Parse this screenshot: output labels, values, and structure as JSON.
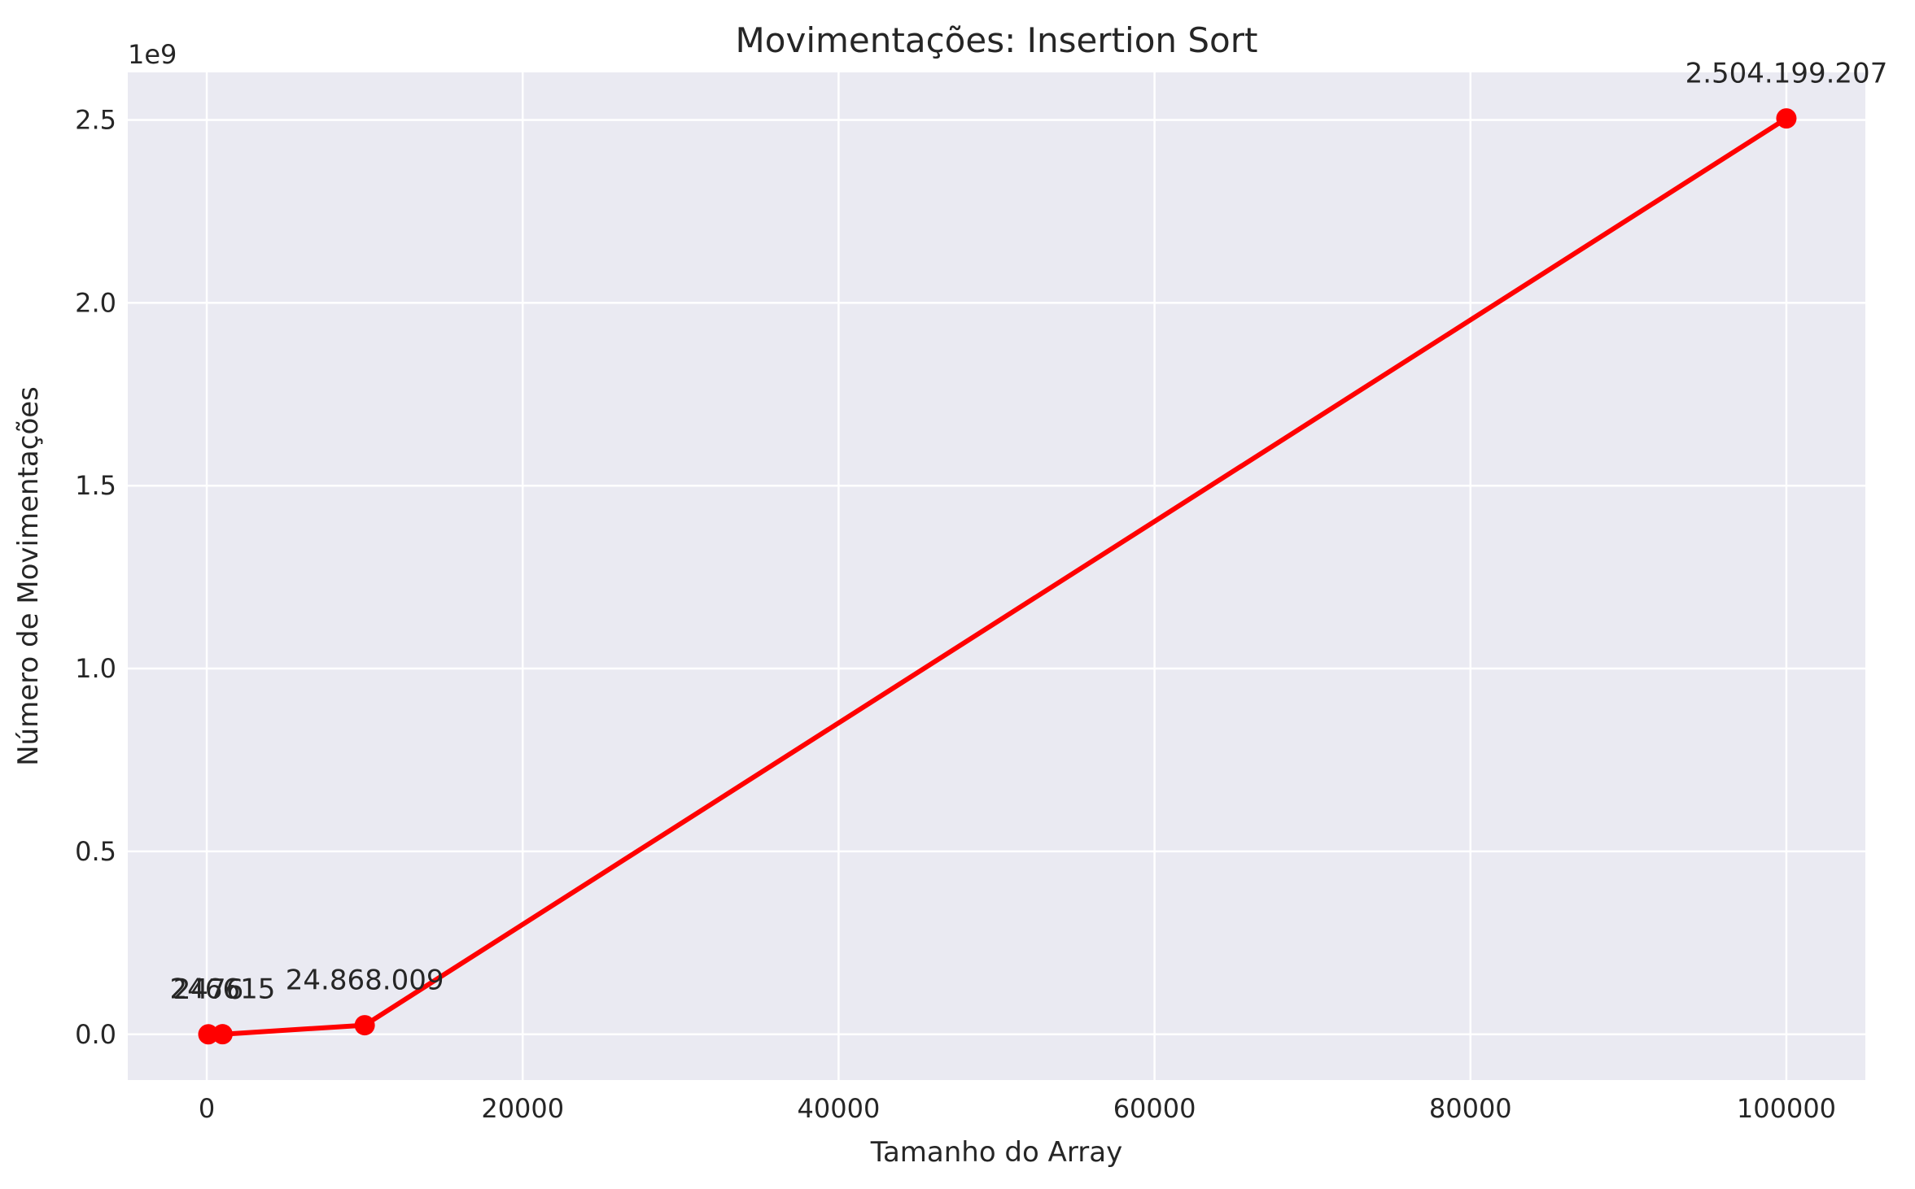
{
  "chart_data": {
    "type": "line",
    "title": "Movimentações: Insertion Sort",
    "xlabel": "Tamanho do Array",
    "ylabel": "Número de Movimentações",
    "y_offset_text": "1e9",
    "x_scale": "linear",
    "y_scale": "linear",
    "y_multiplier": 1000000000,
    "xlim": [
      -5000,
      105000
    ],
    "ylim": [
      -125000000,
      2630000000
    ],
    "x_ticks": [
      0,
      20000,
      40000,
      60000,
      80000,
      100000
    ],
    "x_tick_labels": [
      "0",
      "20000",
      "40000",
      "60000",
      "80000",
      "100000"
    ],
    "y_ticks": [
      0,
      500000000,
      1000000000,
      1500000000,
      2000000000,
      2500000000
    ],
    "y_tick_labels": [
      "0.0",
      "0.5",
      "1.0",
      "1.5",
      "2.0",
      "2.5"
    ],
    "grid": true,
    "series": [
      {
        "color": "#ff0000",
        "marker": "circle",
        "points": [
          {
            "x": 100,
            "y": 2476,
            "label": "2476"
          },
          {
            "x": 1000,
            "y": 246615,
            "label": "246615"
          },
          {
            "x": 10000,
            "y": 24868009,
            "label": "24.868.009"
          },
          {
            "x": 100000,
            "y": 2504199207,
            "label": "2.504.199.207"
          }
        ]
      }
    ]
  }
}
